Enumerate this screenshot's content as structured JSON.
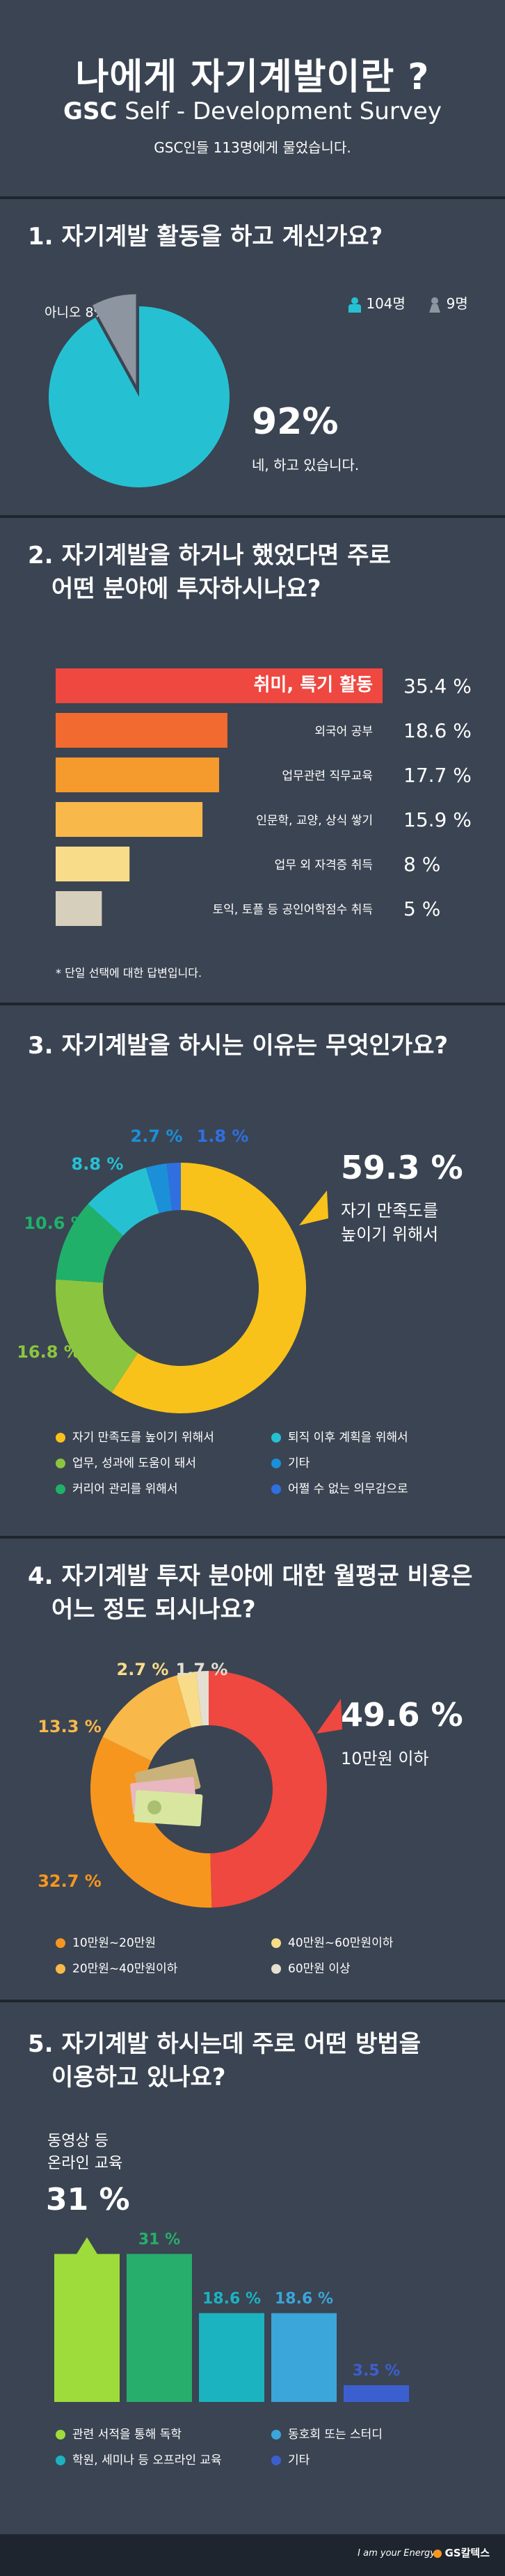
{
  "header": {
    "title": "나에게 자기계발이란 ?",
    "brand": "GSC",
    "subtitle": "Self - Development Survey",
    "note": "GSC인들 113명에게 물었습니다."
  },
  "q1": {
    "title": "1. 자기계발 활동을 하고 계신가요?",
    "male_count": "104명",
    "female_count": "9명",
    "no_label": "아니오 8%",
    "yes_pct": "92%",
    "yes_label": "네, 하고 있습니다."
  },
  "q2": {
    "title_line1": "2. 자기계발을 하거나 했었다면 주로",
    "title_line2": "어떤 분야에 투자하시나요?",
    "footnote": "* 단일 선택에 대한 답변입니다."
  },
  "q3": {
    "title": "3. 자기계발을 하시는 이유는 무엇인가요?",
    "highlight_pct": "59.3 %",
    "highlight_line1": "자기 만족도를",
    "highlight_line2": "높이기 위해서"
  },
  "q4": {
    "title_line1": "4. 자기계발 투자 분야에 대한 월평균 비용은",
    "title_line2": "어느 정도 되시나요?",
    "highlight_pct": "49.6 %",
    "highlight_label": "10만원 이하"
  },
  "q5": {
    "title_line1": "5. 자기계발 하시는데 주로 어떤 방법을",
    "title_line2": "이용하고 있나요?",
    "highlight_line1": "동영상 등",
    "highlight_line2": "온라인 교육",
    "highlight_pct": "31 %"
  },
  "footer": {
    "slogan": "I am your Energy",
    "logo": "GS칼텍스"
  },
  "colors": {
    "bg": "#3b4452",
    "dark": "#1f252e",
    "cyan": "#25c1d3",
    "gray": "#8d95a0"
  },
  "chart_data": [
    {
      "type": "pie",
      "name": "q1",
      "categories": [
        "네",
        "아니오"
      ],
      "values": [
        92,
        8
      ],
      "colors": [
        "#25c1d3",
        "#8d95a0"
      ]
    },
    {
      "type": "bar",
      "name": "q2",
      "orientation": "horizontal",
      "categories": [
        "취미, 특기 활동",
        "외국어 공부",
        "업무관련 직무교육",
        "인문학, 교양, 상식 쌓기",
        "업무 외 자격증 취득",
        "토익, 토플 등 공인어학점수 취득"
      ],
      "values": [
        35.4,
        18.6,
        17.7,
        15.9,
        8,
        5
      ],
      "value_labels": [
        "35.4 %",
        "18.6 %",
        "17.7 %",
        "15.9 %",
        "8 %",
        "5 %"
      ],
      "colors": [
        "#ee4840",
        "#f26a2f",
        "#f59a2c",
        "#f8b84a",
        "#f9dc8a",
        "#d6cfbc"
      ]
    },
    {
      "type": "pie",
      "name": "q3",
      "donut": true,
      "categories": [
        "자기 만족도를 높이기 위해서",
        "업무, 성과에 도움이 돼서",
        "커리어 관리를 위해서",
        "퇴직 이후 계획을 위해서",
        "기타",
        "어쩔 수 없는 의무감으로"
      ],
      "values": [
        59.3,
        16.8,
        10.6,
        8.8,
        2.7,
        1.8
      ],
      "value_labels": [
        "59.3 %",
        "16.8 %",
        "10.6 %",
        "8.8 %",
        "2.7 %",
        "1.8 %"
      ],
      "colors": [
        "#f9c21a",
        "#8bc53f",
        "#20b06a",
        "#25c1d3",
        "#1b8fd8",
        "#2f6fe0"
      ]
    },
    {
      "type": "pie",
      "name": "q4",
      "donut": true,
      "categories": [
        "10만원 이하",
        "10만원~20만원",
        "20만원~40만원이하",
        "40만원~60만원이하",
        "60만원 이상"
      ],
      "values": [
        49.6,
        32.7,
        13.3,
        2.7,
        1.7
      ],
      "value_labels": [
        "49.6 %",
        "32.7 %",
        "13.3 %",
        "2.7 %",
        "1.7 %"
      ],
      "colors": [
        "#ee4840",
        "#f7961e",
        "#f8b84a",
        "#f9dc8a",
        "#e4dfd1"
      ],
      "legend": [
        "10만원~20만원",
        "40만원~60만원이하",
        "20만원~40만원이하",
        "60만원 이상"
      ]
    },
    {
      "type": "bar",
      "name": "q5",
      "categories": [
        "관련 서적을 통해 독학",
        "동영상 등 온라인 교육",
        "학원, 세미나 등 오프라인 교육",
        "동호회 또는 스터디",
        "기타"
      ],
      "values": [
        31,
        31,
        18.6,
        18.6,
        3.5
      ],
      "value_labels": [
        "",
        "31 %",
        "18.6 %",
        "18.6 %",
        "3.5 %"
      ],
      "colors": [
        "#9ddc3a",
        "#27ae6d",
        "#1bb3c0",
        "#3aa6d9",
        "#3c5fd0"
      ],
      "ylim": [
        0,
        35
      ]
    }
  ]
}
